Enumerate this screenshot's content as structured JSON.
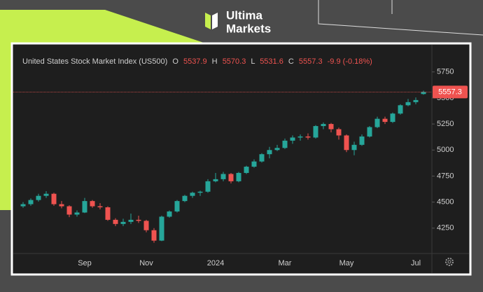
{
  "brand": {
    "line1": "Ultima",
    "line2": "Markets"
  },
  "chart_data": {
    "type": "candlestick",
    "title": "United States Stock Market Index (US500)",
    "ohlc_labels": [
      "O",
      "H",
      "L",
      "C"
    ],
    "change_label": "-9.9 (-0.18%)",
    "categories": [
      null,
      null,
      null,
      null,
      null,
      null,
      null,
      null,
      "Sep",
      null,
      null,
      null,
      null,
      null,
      null,
      null,
      "Nov",
      null,
      null,
      null,
      null,
      null,
      null,
      null,
      null,
      "2024",
      null,
      null,
      null,
      null,
      null,
      null,
      null,
      null,
      "Mar",
      null,
      null,
      null,
      null,
      null,
      null,
      null,
      "May",
      null,
      null,
      null,
      null,
      null,
      null,
      null,
      null,
      "Jul",
      null
    ],
    "open": [
      4460,
      4480,
      4520,
      4560,
      4580,
      4480,
      4460,
      4380,
      4400,
      4510,
      4460,
      4450,
      4330,
      4290,
      4310,
      4330,
      4320,
      4230,
      4130,
      4360,
      4410,
      4510,
      4560,
      4590,
      4600,
      4700,
      4720,
      4770,
      4700,
      4780,
      4840,
      4890,
      4960,
      5000,
      5020,
      5090,
      5120,
      5130,
      5120,
      5230,
      5250,
      5200,
      5140,
      5000,
      5050,
      5130,
      5220,
      5300,
      5270,
      5350,
      5430,
      5460,
      5537.9
    ],
    "high": [
      4500,
      4535,
      4580,
      4605,
      4590,
      4510,
      4470,
      4420,
      4540,
      4520,
      4490,
      4460,
      4345,
      4340,
      4390,
      4370,
      4330,
      4250,
      4370,
      4420,
      4520,
      4570,
      4600,
      4610,
      4720,
      4780,
      4790,
      4780,
      4790,
      4850,
      4910,
      4970,
      5030,
      5050,
      5110,
      5140,
      5150,
      5160,
      5240,
      5265,
      5260,
      5215,
      5150,
      5080,
      5150,
      5230,
      5320,
      5320,
      5360,
      5440,
      5490,
      5505,
      5570.3
    ],
    "low": [
      4445,
      4465,
      4505,
      4540,
      4465,
      4440,
      4355,
      4360,
      4395,
      4445,
      4430,
      4320,
      4270,
      4270,
      4290,
      4300,
      4210,
      4110,
      4125,
      4350,
      4400,
      4500,
      4540,
      4560,
      4590,
      4690,
      4700,
      4680,
      4690,
      4770,
      4830,
      4880,
      4920,
      4990,
      5010,
      5060,
      5090,
      5100,
      5110,
      5200,
      5170,
      5100,
      4980,
      4950,
      5040,
      5120,
      5210,
      5250,
      5260,
      5340,
      5420,
      5440,
      5531.6
    ],
    "close": [
      4480,
      4520,
      4560,
      4580,
      4480,
      4460,
      4380,
      4400,
      4510,
      4460,
      4450,
      4330,
      4290,
      4310,
      4330,
      4320,
      4230,
      4130,
      4360,
      4410,
      4510,
      4560,
      4590,
      4600,
      4700,
      4720,
      4770,
      4700,
      4780,
      4840,
      4890,
      4960,
      5000,
      5020,
      5090,
      5120,
      5130,
      5120,
      5230,
      5250,
      5200,
      5140,
      5000,
      5050,
      5130,
      5220,
      5300,
      5270,
      5350,
      5430,
      5460,
      5480,
      5557.3
    ],
    "up_color": "#26a69a",
    "down_color": "#ef5350",
    "ylim": [
      4020,
      5970
    ],
    "yticks": [
      4250,
      4500,
      4750,
      5000,
      5250,
      5500,
      5750
    ],
    "grid": false
  }
}
